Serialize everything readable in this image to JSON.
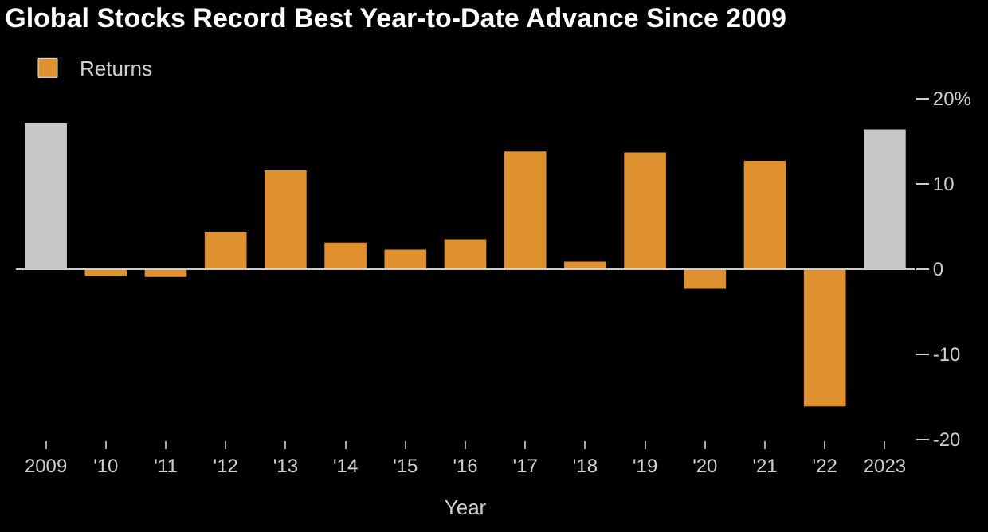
{
  "chart_data": {
    "type": "bar",
    "title": "Global Stocks Record Best Year-to-Date Advance Since 2009",
    "xlabel": "Year",
    "categories": [
      "2009",
      "'10",
      "'11",
      "'12",
      "'13",
      "'14",
      "'15",
      "'16",
      "'17",
      "'18",
      "'19",
      "'20",
      "'21",
      "'22",
      "2023"
    ],
    "series": [
      {
        "name": "Returns",
        "color": "#e0912f",
        "colors": [
          "#c8c8c8",
          "#e0912f",
          "#e0912f",
          "#e0912f",
          "#e0912f",
          "#e0912f",
          "#e0912f",
          "#e0912f",
          "#e0912f",
          "#e0912f",
          "#e0912f",
          "#e0912f",
          "#e0912f",
          "#e0912f",
          "#c8c8c8"
        ],
        "values": [
          17.1,
          -0.8,
          -0.9,
          4.4,
          11.6,
          3.1,
          2.3,
          3.5,
          13.8,
          0.9,
          13.7,
          -2.3,
          12.7,
          -16.1,
          16.4
        ]
      }
    ],
    "ylim": [
      -20,
      20
    ],
    "ref_lines": [
      {
        "axis": "y",
        "value": 0,
        "color": "#cccccc"
      }
    ],
    "yticks": [
      {
        "value": 20,
        "label": "20%"
      },
      10,
      0,
      -10,
      -20
    ],
    "grid": false,
    "legend": "top left"
  }
}
